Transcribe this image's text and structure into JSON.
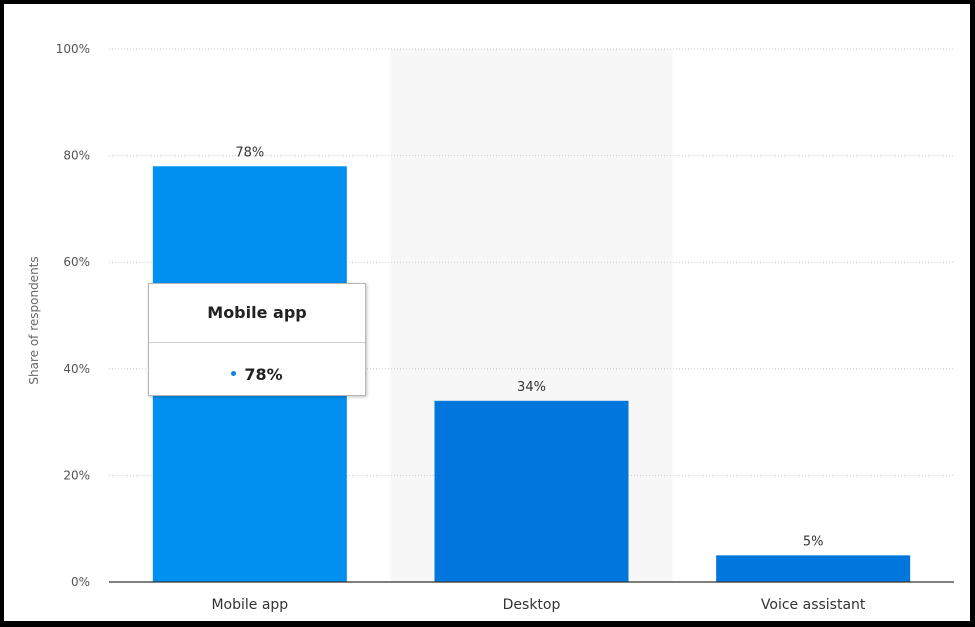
{
  "chart_data": {
    "type": "bar",
    "categories": [
      "Mobile app",
      "Desktop",
      "Voice assistant"
    ],
    "values": [
      78,
      34,
      5
    ],
    "data_labels": [
      "78%",
      "34%",
      "5%"
    ],
    "ylabel": "Share of respondents",
    "ylim": [
      0,
      100
    ],
    "yticks": [
      0,
      20,
      40,
      60,
      80,
      100
    ],
    "ytick_labels": [
      "0%",
      "20%",
      "40%",
      "60%",
      "80%",
      "100%"
    ],
    "grid": true,
    "highlighted_category": "Desktop",
    "colors": {
      "hovered_bar": "#0091f0",
      "bar": "#0077dd",
      "highlight_band": "#f7f7f7",
      "gridline": "#cccccc",
      "axis": "#333333"
    }
  },
  "tooltip": {
    "title": "Mobile app",
    "value": "78%",
    "dot_color": "#0a84e6"
  }
}
